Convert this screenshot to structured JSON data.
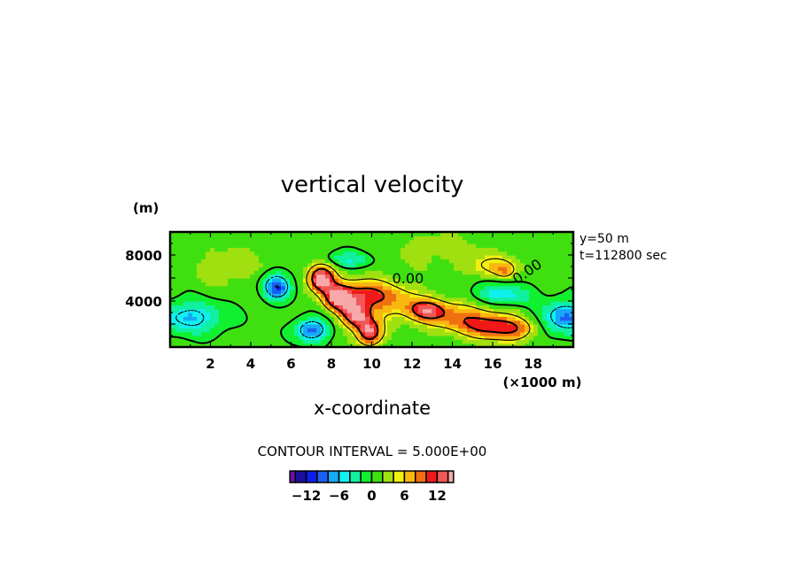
{
  "chart_data": {
    "type": "heatmap",
    "title": "vertical velocity",
    "xlabel": "x-coordinate",
    "xunit": "(×1000 m)",
    "yunit": "(m)",
    "xlim": [
      0,
      20
    ],
    "ylim": [
      0,
      10000
    ],
    "xticks": [
      "2",
      "4",
      "6",
      "8",
      "10",
      "12",
      "14",
      "16",
      "18"
    ],
    "xtick_values": [
      2,
      4,
      6,
      8,
      10,
      12,
      14,
      16,
      18
    ],
    "yticks": [
      "4000",
      "8000"
    ],
    "ytick_values": [
      4000,
      8000
    ],
    "info": [
      "y=50 m",
      "t=112800 sec"
    ],
    "contour_interval_text": "CONTOUR INTERVAL = 5.000E+00",
    "contour_levels": [
      -10,
      -5,
      0,
      5,
      10
    ],
    "contour_labels": [
      {
        "text": "0.00",
        "x": 11.8,
        "y": 6000,
        "angle": 0
      },
      {
        "text": "0.00",
        "x": 17.7,
        "y": 6600,
        "angle": -35
      }
    ],
    "colorbar": {
      "ticks": [
        "−12",
        "−6",
        "0",
        "6",
        "12"
      ],
      "tick_values": [
        -12,
        -6,
        0,
        6,
        12
      ],
      "edges": [
        -14,
        -12,
        -10,
        -8,
        -6,
        -4,
        -2,
        0,
        2,
        4,
        6,
        8,
        10,
        12,
        14
      ],
      "colors": [
        "#6a10a8",
        "#1a10a0",
        "#0a20e8",
        "#1a60f0",
        "#18a8f8",
        "#10f0f0",
        "#10f0a0",
        "#10f030",
        "#40e010",
        "#a0e010",
        "#f0f010",
        "#f8b810",
        "#f07010",
        "#f01818",
        "#f05858",
        "#f8a8a8"
      ]
    },
    "field_features": [
      {
        "x": 7.5,
        "y": 6000,
        "amp": 16,
        "sx": 0.45,
        "sy": 800
      },
      {
        "x": 8.3,
        "y": 4300,
        "amp": 12,
        "sx": 0.5,
        "sy": 800
      },
      {
        "x": 9.2,
        "y": 2800,
        "amp": 12,
        "sx": 0.5,
        "sy": 800
      },
      {
        "x": 9.9,
        "y": 1300,
        "amp": 13,
        "sx": 0.45,
        "sy": 800
      },
      {
        "x": 9.5,
        "y": 4700,
        "amp": 8,
        "sx": 0.9,
        "sy": 900
      },
      {
        "x": 11.0,
        "y": 4000,
        "amp": 6,
        "sx": 1.2,
        "sy": 1100
      },
      {
        "x": 12.7,
        "y": 3200,
        "amp": 9,
        "sx": 0.6,
        "sy": 600
      },
      {
        "x": 14.2,
        "y": 2700,
        "amp": 7,
        "sx": 1.2,
        "sy": 1000
      },
      {
        "x": 16.0,
        "y": 1800,
        "amp": 9,
        "sx": 1.0,
        "sy": 800
      },
      {
        "x": 17.2,
        "y": 1500,
        "amp": 5,
        "sx": 0.7,
        "sy": 700
      },
      {
        "x": 16.1,
        "y": 7000,
        "amp": 5,
        "sx": 0.9,
        "sy": 700
      },
      {
        "x": 16.6,
        "y": 6600,
        "amp": 4,
        "sx": 0.3,
        "sy": 400
      },
      {
        "x": 5.3,
        "y": 5300,
        "amp": -11,
        "sx": 0.5,
        "sy": 800
      },
      {
        "x": 7.0,
        "y": 1500,
        "amp": -10,
        "sx": 0.55,
        "sy": 700
      },
      {
        "x": 1.0,
        "y": 2600,
        "amp": -7,
        "sx": 1.2,
        "sy": 1000
      },
      {
        "x": 19.6,
        "y": 2600,
        "amp": -9,
        "sx": 0.8,
        "sy": 1000
      },
      {
        "x": 16.4,
        "y": 4600,
        "amp": -6,
        "sx": 1.0,
        "sy": 700
      },
      {
        "x": 8.8,
        "y": 7600,
        "amp": -5,
        "sx": 0.8,
        "sy": 500
      },
      {
        "x": 3.0,
        "y": 7000,
        "amp": 2,
        "sx": 1.5,
        "sy": 1500
      },
      {
        "x": 13.5,
        "y": 8500,
        "amp": 2,
        "sx": 2.0,
        "sy": 1200
      }
    ],
    "background_value": 0.8
  }
}
